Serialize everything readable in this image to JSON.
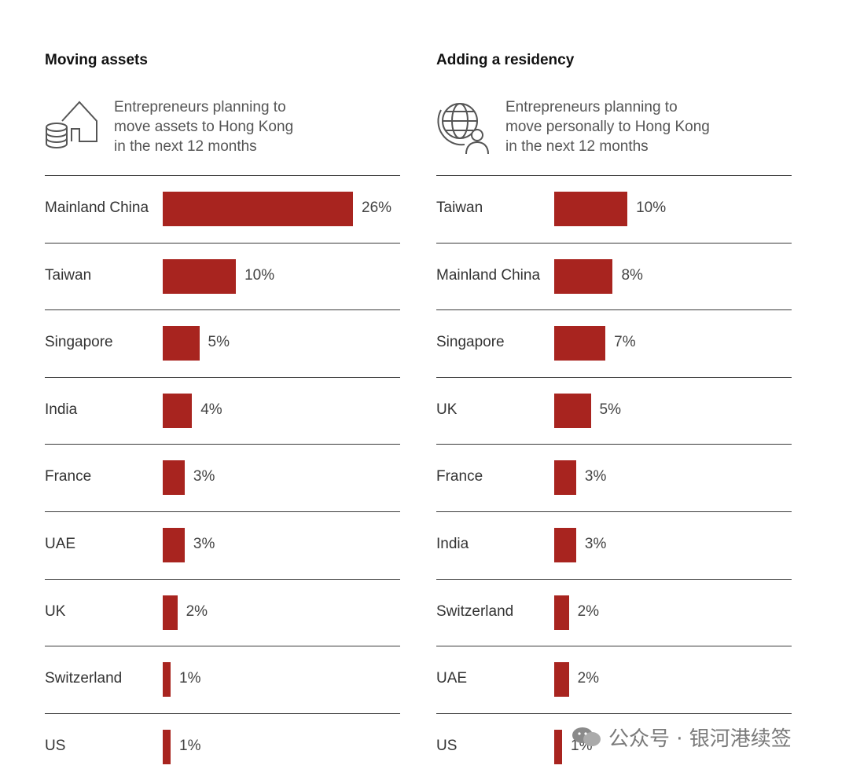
{
  "chart_data": [
    {
      "type": "bar",
      "title": "Moving assets",
      "subtitle": "Entrepreneurs planning to\nmove assets to Hong Kong\nin the next 12 months",
      "icon": "coins-house-icon",
      "categories": [
        "Mainland China",
        "Taiwan",
        "Singapore",
        "India",
        "France",
        "UAE",
        "UK",
        "Switzerland",
        "US"
      ],
      "values": [
        26,
        10,
        5,
        4,
        3,
        3,
        2,
        1,
        1
      ],
      "value_labels": [
        "26%",
        "10%",
        "5%",
        "4%",
        "3%",
        "3%",
        "2%",
        "1%",
        "1%"
      ],
      "orientation": "horizontal",
      "xlim": [
        0,
        26
      ],
      "grid": false
    },
    {
      "type": "bar",
      "title": "Adding a residency",
      "subtitle": "Entrepreneurs planning to\nmove personally to Hong Kong\nin the next 12 months",
      "icon": "globe-person-icon",
      "categories": [
        "Taiwan",
        "Mainland China",
        "Singapore",
        "UK",
        "France",
        "India",
        "Switzerland",
        "UAE",
        "US"
      ],
      "values": [
        10,
        8,
        7,
        5,
        3,
        3,
        2,
        2,
        1
      ],
      "value_labels": [
        "10%",
        "8%",
        "7%",
        "5%",
        "3%",
        "3%",
        "2%",
        "2%",
        "1%"
      ],
      "orientation": "horizontal",
      "xlim": [
        0,
        26
      ],
      "grid": false
    }
  ],
  "colors": {
    "bar": "#a8241f"
  },
  "watermark": {
    "text": "公众号 · 银河港续签"
  }
}
